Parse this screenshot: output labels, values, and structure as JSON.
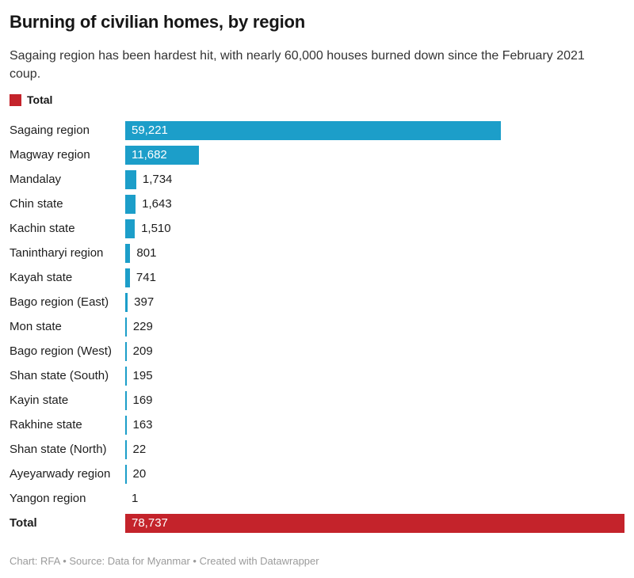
{
  "header": {
    "title": "Burning of civilian homes, by region",
    "subtitle": "Sagaing region has been hardest hit, with nearly 60,000 houses burned down since the February 2021 coup."
  },
  "legend": {
    "label": "Total",
    "swatch_color": "#c4232b"
  },
  "colors": {
    "bar": "#1c9ec9",
    "total_bar": "#c4232b"
  },
  "chart_data": {
    "type": "bar",
    "orientation": "horizontal",
    "title": "Burning of civilian homes, by region",
    "subtitle": "Sagaing region has been hardest hit, with nearly 60,000 houses burned down since the February 2021 coup.",
    "legend_entries": [
      "Total"
    ],
    "xlim": [
      0,
      78737
    ],
    "max": 78737,
    "grid": false,
    "series": [
      {
        "label": "Sagaing region",
        "value": 59221,
        "display": "59,221"
      },
      {
        "label": "Magway region",
        "value": 11682,
        "display": "11,682"
      },
      {
        "label": "Mandalay",
        "value": 1734,
        "display": "1,734"
      },
      {
        "label": "Chin state",
        "value": 1643,
        "display": "1,643"
      },
      {
        "label": "Kachin state",
        "value": 1510,
        "display": "1,510"
      },
      {
        "label": "Tanintharyi region",
        "value": 801,
        "display": "801"
      },
      {
        "label": "Kayah state",
        "value": 741,
        "display": "741"
      },
      {
        "label": "Bago region (East)",
        "value": 397,
        "display": "397"
      },
      {
        "label": "Mon state",
        "value": 229,
        "display": "229"
      },
      {
        "label": "Bago region (West)",
        "value": 209,
        "display": "209"
      },
      {
        "label": "Shan state (South)",
        "value": 195,
        "display": "195"
      },
      {
        "label": "Kayin state",
        "value": 169,
        "display": "169"
      },
      {
        "label": "Rakhine state",
        "value": 163,
        "display": "163"
      },
      {
        "label": "Shan state (North)",
        "value": 22,
        "display": "22"
      },
      {
        "label": "Ayeyarwady region",
        "value": 20,
        "display": "20"
      },
      {
        "label": "Yangon region",
        "value": 1,
        "display": "1"
      },
      {
        "label": "Total",
        "value": 78737,
        "display": "78,737",
        "total": true
      }
    ]
  },
  "footer": {
    "text": "Chart: RFA • Source: Data for Myanmar • Created with Datawrapper"
  }
}
